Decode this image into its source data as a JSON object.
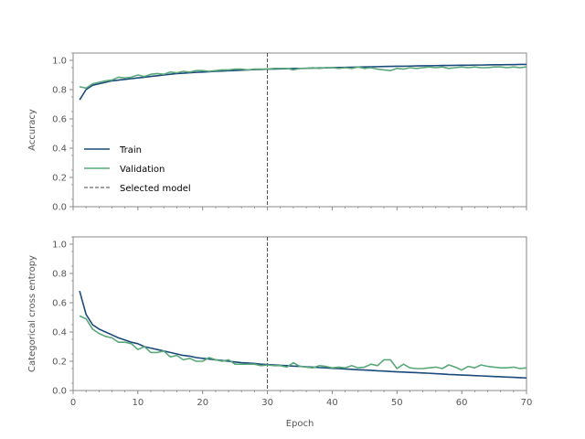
{
  "colors": {
    "train": "#1a4a7a",
    "validation": "#5aa87a",
    "selected": "#444444",
    "spine": "#888888",
    "text": "#555555"
  },
  "legend": {
    "placement": "lower-left of top panel",
    "train": "Train",
    "validation": "Validation",
    "selected": "Selected model"
  },
  "chart_data": [
    {
      "type": "line",
      "ylabel": "Accuracy",
      "xlabel": "",
      "xlim": [
        0,
        70
      ],
      "ylim": [
        0,
        1.05
      ],
      "xticks": [
        0,
        10,
        20,
        30,
        40,
        50,
        60,
        70
      ],
      "yticks": [
        "0.0",
        "0.2",
        "0.4",
        "0.6",
        "0.8",
        "1.0"
      ],
      "grid": false,
      "selected_epoch": 30,
      "series": [
        {
          "name": "Train",
          "x": [
            1,
            2,
            3,
            4,
            5,
            6,
            7,
            8,
            9,
            10,
            11,
            12,
            13,
            14,
            15,
            16,
            17,
            18,
            19,
            20,
            21,
            22,
            23,
            24,
            25,
            26,
            27,
            28,
            29,
            30,
            31,
            32,
            33,
            34,
            35,
            36,
            37,
            38,
            39,
            40,
            41,
            42,
            43,
            44,
            45,
            46,
            47,
            48,
            49,
            50,
            51,
            52,
            53,
            54,
            55,
            56,
            57,
            58,
            59,
            60,
            61,
            62,
            63,
            64,
            65,
            66,
            67,
            68,
            69,
            70
          ],
          "values": [
            0.73,
            0.8,
            0.83,
            0.84,
            0.85,
            0.86,
            0.865,
            0.87,
            0.875,
            0.88,
            0.885,
            0.89,
            0.895,
            0.9,
            0.905,
            0.91,
            0.912,
            0.915,
            0.918,
            0.92,
            0.922,
            0.925,
            0.927,
            0.929,
            0.931,
            0.933,
            0.935,
            0.937,
            0.938,
            0.94,
            0.941,
            0.942,
            0.943,
            0.944,
            0.945,
            0.946,
            0.947,
            0.948,
            0.949,
            0.95,
            0.951,
            0.952,
            0.953,
            0.954,
            0.955,
            0.956,
            0.957,
            0.958,
            0.959,
            0.96,
            0.96,
            0.961,
            0.962,
            0.963,
            0.963,
            0.964,
            0.965,
            0.965,
            0.966,
            0.967,
            0.967,
            0.968,
            0.968,
            0.969,
            0.97,
            0.97,
            0.971,
            0.971,
            0.972,
            0.972
          ]
        },
        {
          "name": "Validation",
          "x": [
            1,
            2,
            3,
            4,
            5,
            6,
            7,
            8,
            9,
            10,
            11,
            12,
            13,
            14,
            15,
            16,
            17,
            18,
            19,
            20,
            21,
            22,
            23,
            24,
            25,
            26,
            27,
            28,
            29,
            30,
            31,
            32,
            33,
            34,
            35,
            36,
            37,
            38,
            39,
            40,
            41,
            42,
            43,
            44,
            45,
            46,
            47,
            48,
            49,
            50,
            51,
            52,
            53,
            54,
            55,
            56,
            57,
            58,
            59,
            60,
            61,
            62,
            63,
            64,
            65,
            66,
            67,
            68,
            69,
            70
          ],
          "values": [
            0.82,
            0.81,
            0.84,
            0.85,
            0.86,
            0.865,
            0.885,
            0.88,
            0.885,
            0.9,
            0.89,
            0.905,
            0.91,
            0.905,
            0.92,
            0.915,
            0.925,
            0.92,
            0.93,
            0.93,
            0.925,
            0.93,
            0.935,
            0.935,
            0.94,
            0.94,
            0.935,
            0.94,
            0.94,
            0.94,
            0.945,
            0.945,
            0.945,
            0.935,
            0.945,
            0.945,
            0.95,
            0.945,
            0.95,
            0.95,
            0.945,
            0.95,
            0.945,
            0.955,
            0.945,
            0.95,
            0.94,
            0.935,
            0.93,
            0.945,
            0.94,
            0.95,
            0.945,
            0.95,
            0.955,
            0.95,
            0.955,
            0.945,
            0.95,
            0.955,
            0.95,
            0.955,
            0.95,
            0.95,
            0.955,
            0.955,
            0.95,
            0.955,
            0.95,
            0.955
          ]
        }
      ]
    },
    {
      "type": "line",
      "ylabel": "Categorical cross entropy",
      "xlabel": "Epoch",
      "xlim": [
        0,
        70
      ],
      "ylim": [
        0,
        1.05
      ],
      "xticks": [
        0,
        10,
        20,
        30,
        40,
        50,
        60,
        70
      ],
      "yticks": [
        "0.0",
        "0.2",
        "0.4",
        "0.6",
        "0.8",
        "1.0"
      ],
      "grid": false,
      "selected_epoch": 30,
      "series": [
        {
          "name": "Train",
          "x": [
            1,
            2,
            3,
            4,
            5,
            6,
            7,
            8,
            9,
            10,
            11,
            12,
            13,
            14,
            15,
            16,
            17,
            18,
            19,
            20,
            21,
            22,
            23,
            24,
            25,
            26,
            27,
            28,
            29,
            30,
            31,
            32,
            33,
            34,
            35,
            36,
            37,
            38,
            39,
            40,
            41,
            42,
            43,
            44,
            45,
            46,
            47,
            48,
            49,
            50,
            51,
            52,
            53,
            54,
            55,
            56,
            57,
            58,
            59,
            60,
            61,
            62,
            63,
            64,
            65,
            66,
            67,
            68,
            69,
            70
          ],
          "values": [
            0.68,
            0.52,
            0.45,
            0.42,
            0.4,
            0.38,
            0.36,
            0.345,
            0.33,
            0.32,
            0.3,
            0.29,
            0.28,
            0.27,
            0.26,
            0.25,
            0.24,
            0.235,
            0.225,
            0.22,
            0.215,
            0.21,
            0.205,
            0.2,
            0.195,
            0.19,
            0.188,
            0.185,
            0.18,
            0.178,
            0.175,
            0.172,
            0.17,
            0.167,
            0.165,
            0.162,
            0.16,
            0.157,
            0.155,
            0.152,
            0.15,
            0.147,
            0.145,
            0.142,
            0.14,
            0.138,
            0.135,
            0.133,
            0.13,
            0.128,
            0.126,
            0.124,
            0.122,
            0.12,
            0.118,
            0.115,
            0.113,
            0.11,
            0.108,
            0.106,
            0.104,
            0.102,
            0.1,
            0.098,
            0.096,
            0.094,
            0.092,
            0.09,
            0.088,
            0.086
          ]
        },
        {
          "name": "Validation",
          "x": [
            1,
            2,
            3,
            4,
            5,
            6,
            7,
            8,
            9,
            10,
            11,
            12,
            13,
            14,
            15,
            16,
            17,
            18,
            19,
            20,
            21,
            22,
            23,
            24,
            25,
            26,
            27,
            28,
            29,
            30,
            31,
            32,
            33,
            34,
            35,
            36,
            37,
            38,
            39,
            40,
            41,
            42,
            43,
            44,
            45,
            46,
            47,
            48,
            49,
            50,
            51,
            52,
            53,
            54,
            55,
            56,
            57,
            58,
            59,
            60,
            61,
            62,
            63,
            64,
            65,
            66,
            67,
            68,
            69,
            70
          ],
          "values": [
            0.51,
            0.49,
            0.42,
            0.39,
            0.37,
            0.36,
            0.33,
            0.33,
            0.32,
            0.28,
            0.3,
            0.26,
            0.26,
            0.27,
            0.23,
            0.24,
            0.21,
            0.22,
            0.2,
            0.2,
            0.225,
            0.21,
            0.2,
            0.21,
            0.18,
            0.18,
            0.18,
            0.18,
            0.17,
            0.175,
            0.17,
            0.17,
            0.16,
            0.19,
            0.165,
            0.16,
            0.155,
            0.17,
            0.165,
            0.155,
            0.16,
            0.155,
            0.17,
            0.155,
            0.16,
            0.18,
            0.17,
            0.21,
            0.21,
            0.15,
            0.18,
            0.155,
            0.15,
            0.15,
            0.155,
            0.16,
            0.15,
            0.175,
            0.16,
            0.14,
            0.165,
            0.155,
            0.175,
            0.165,
            0.16,
            0.155,
            0.155,
            0.16,
            0.15,
            0.155
          ]
        }
      ]
    }
  ]
}
